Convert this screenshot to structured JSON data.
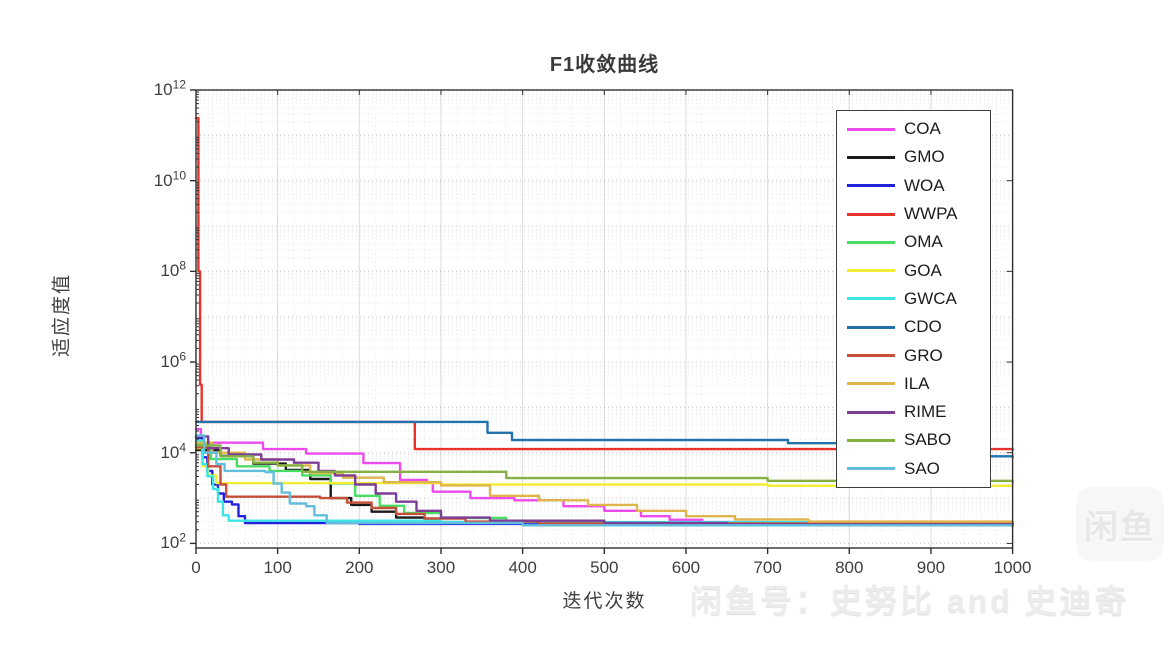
{
  "watermarks": {
    "badge_text": "闲鱼",
    "footer_text": "闲鱼号：史努比 and 史迪奇"
  },
  "chart_data": {
    "type": "line",
    "title": "F1收敛曲线",
    "xlabel": "迭代次数",
    "ylabel": "适应度值",
    "xscale": "linear",
    "yscale": "log",
    "xlim": [
      0,
      1000
    ],
    "ylim_log10": [
      1.9,
      12
    ],
    "x_ticks": [
      0,
      100,
      200,
      300,
      400,
      500,
      600,
      700,
      800,
      900,
      1000
    ],
    "y_tick_exponents": [
      12,
      10,
      8,
      6,
      4,
      2
    ],
    "grid": "minor-dotted",
    "legend_position": "upper-right",
    "series_note": "points are [iteration, log10(fitness)] breakpoints; curves hold value between breakpoints (step plot)",
    "series": [
      {
        "name": "COA",
        "color": "#ee4bee",
        "points": [
          [
            0,
            4.52
          ],
          [
            6,
            4.22
          ],
          [
            82,
            4.08
          ],
          [
            135,
            3.98
          ],
          [
            205,
            3.77
          ],
          [
            250,
            3.4
          ],
          [
            283,
            3.35
          ],
          [
            290,
            3.14
          ],
          [
            336,
            3.0
          ],
          [
            390,
            2.95
          ],
          [
            450,
            2.82
          ],
          [
            500,
            2.72
          ],
          [
            545,
            2.6
          ],
          [
            580,
            2.52
          ],
          [
            620,
            2.47
          ],
          [
            700,
            2.45
          ],
          [
            1000,
            2.44
          ]
        ]
      },
      {
        "name": "GMO",
        "color": "#1a1a1a",
        "points": [
          [
            0,
            4.06
          ],
          [
            30,
            3.93
          ],
          [
            70,
            3.76
          ],
          [
            110,
            3.62
          ],
          [
            140,
            3.42
          ],
          [
            165,
            3.0
          ],
          [
            190,
            2.85
          ],
          [
            215,
            2.7
          ],
          [
            245,
            2.57
          ],
          [
            280,
            2.47
          ],
          [
            400,
            2.45
          ],
          [
            1000,
            2.44
          ]
        ]
      },
      {
        "name": "WOA",
        "color": "#2222dd",
        "points": [
          [
            0,
            4.33
          ],
          [
            8,
            3.9
          ],
          [
            14,
            3.6
          ],
          [
            20,
            3.3
          ],
          [
            27,
            3.1
          ],
          [
            34,
            2.92
          ],
          [
            44,
            2.86
          ],
          [
            52,
            2.6
          ],
          [
            60,
            2.45
          ],
          [
            200,
            2.43
          ],
          [
            1000,
            2.42
          ]
        ]
      },
      {
        "name": "WWPA",
        "color": "#e8332b",
        "points": [
          [
            0,
            11.38
          ],
          [
            3,
            8.0
          ],
          [
            5,
            5.5
          ],
          [
            7,
            4.68
          ],
          [
            268,
            4.08
          ],
          [
            1000,
            4.06
          ]
        ]
      },
      {
        "name": "OMA",
        "color": "#49dd63",
        "points": [
          [
            0,
            4.2
          ],
          [
            18,
            3.86
          ],
          [
            50,
            3.7
          ],
          [
            90,
            3.6
          ],
          [
            130,
            3.5
          ],
          [
            165,
            3.32
          ],
          [
            195,
            3.05
          ],
          [
            225,
            2.83
          ],
          [
            255,
            2.67
          ],
          [
            300,
            2.56
          ],
          [
            380,
            2.5
          ],
          [
            500,
            2.46
          ],
          [
            1000,
            2.45
          ]
        ]
      },
      {
        "name": "GOA",
        "color": "#f2ee35",
        "points": [
          [
            0,
            4.1
          ],
          [
            8,
            3.7
          ],
          [
            15,
            3.5
          ],
          [
            25,
            3.33
          ],
          [
            300,
            3.3
          ],
          [
            700,
            3.27
          ],
          [
            1000,
            3.25
          ]
        ]
      },
      {
        "name": "GWCA",
        "color": "#3ce6e6",
        "points": [
          [
            0,
            4.27
          ],
          [
            8,
            3.75
          ],
          [
            14,
            3.48
          ],
          [
            21,
            3.2
          ],
          [
            27,
            2.92
          ],
          [
            33,
            2.62
          ],
          [
            40,
            2.5
          ],
          [
            300,
            2.47
          ],
          [
            1000,
            2.46
          ]
        ]
      },
      {
        "name": "CDO",
        "color": "#2273ac",
        "points": [
          [
            0,
            4.68
          ],
          [
            357,
            4.44
          ],
          [
            387,
            4.28
          ],
          [
            725,
            4.21
          ],
          [
            860,
            3.92
          ],
          [
            1000,
            3.9
          ]
        ]
      },
      {
        "name": "GRO",
        "color": "#c64f38",
        "points": [
          [
            0,
            4.12
          ],
          [
            15,
            3.7
          ],
          [
            30,
            3.3
          ],
          [
            37,
            3.03
          ],
          [
            152,
            3.0
          ],
          [
            185,
            2.9
          ],
          [
            215,
            2.78
          ],
          [
            245,
            2.65
          ],
          [
            280,
            2.55
          ],
          [
            330,
            2.48
          ],
          [
            420,
            2.44
          ],
          [
            1000,
            2.43
          ]
        ]
      },
      {
        "name": "ILA",
        "color": "#dfb54d",
        "points": [
          [
            0,
            4.22
          ],
          [
            20,
            4.0
          ],
          [
            60,
            3.85
          ],
          [
            100,
            3.72
          ],
          [
            140,
            3.55
          ],
          [
            180,
            3.45
          ],
          [
            230,
            3.35
          ],
          [
            300,
            3.28
          ],
          [
            360,
            3.05
          ],
          [
            420,
            2.95
          ],
          [
            480,
            2.85
          ],
          [
            540,
            2.72
          ],
          [
            600,
            2.6
          ],
          [
            660,
            2.53
          ],
          [
            750,
            2.48
          ],
          [
            1000,
            2.46
          ]
        ]
      },
      {
        "name": "RIME",
        "color": "#7d3c96",
        "points": [
          [
            0,
            4.36
          ],
          [
            15,
            4.1
          ],
          [
            40,
            3.96
          ],
          [
            80,
            3.85
          ],
          [
            120,
            3.78
          ],
          [
            150,
            3.6
          ],
          [
            170,
            3.5
          ],
          [
            195,
            3.3
          ],
          [
            220,
            3.1
          ],
          [
            245,
            2.92
          ],
          [
            270,
            2.72
          ],
          [
            300,
            2.57
          ],
          [
            360,
            2.5
          ],
          [
            500,
            2.45
          ],
          [
            650,
            2.42
          ],
          [
            1000,
            2.41
          ]
        ]
      },
      {
        "name": "SABO",
        "color": "#85b042",
        "points": [
          [
            0,
            4.16
          ],
          [
            30,
            3.92
          ],
          [
            70,
            3.78
          ],
          [
            100,
            3.72
          ],
          [
            130,
            3.58
          ],
          [
            380,
            3.44
          ],
          [
            700,
            3.38
          ],
          [
            1000,
            3.35
          ]
        ]
      },
      {
        "name": "SAO",
        "color": "#61bede",
        "points": [
          [
            0,
            4.38
          ],
          [
            10,
            4.0
          ],
          [
            25,
            3.75
          ],
          [
            35,
            3.6
          ],
          [
            85,
            3.57
          ],
          [
            95,
            3.32
          ],
          [
            105,
            3.12
          ],
          [
            115,
            2.88
          ],
          [
            135,
            2.82
          ],
          [
            145,
            2.62
          ],
          [
            160,
            2.45
          ],
          [
            400,
            2.4
          ],
          [
            1000,
            2.37
          ]
        ]
      }
    ]
  }
}
